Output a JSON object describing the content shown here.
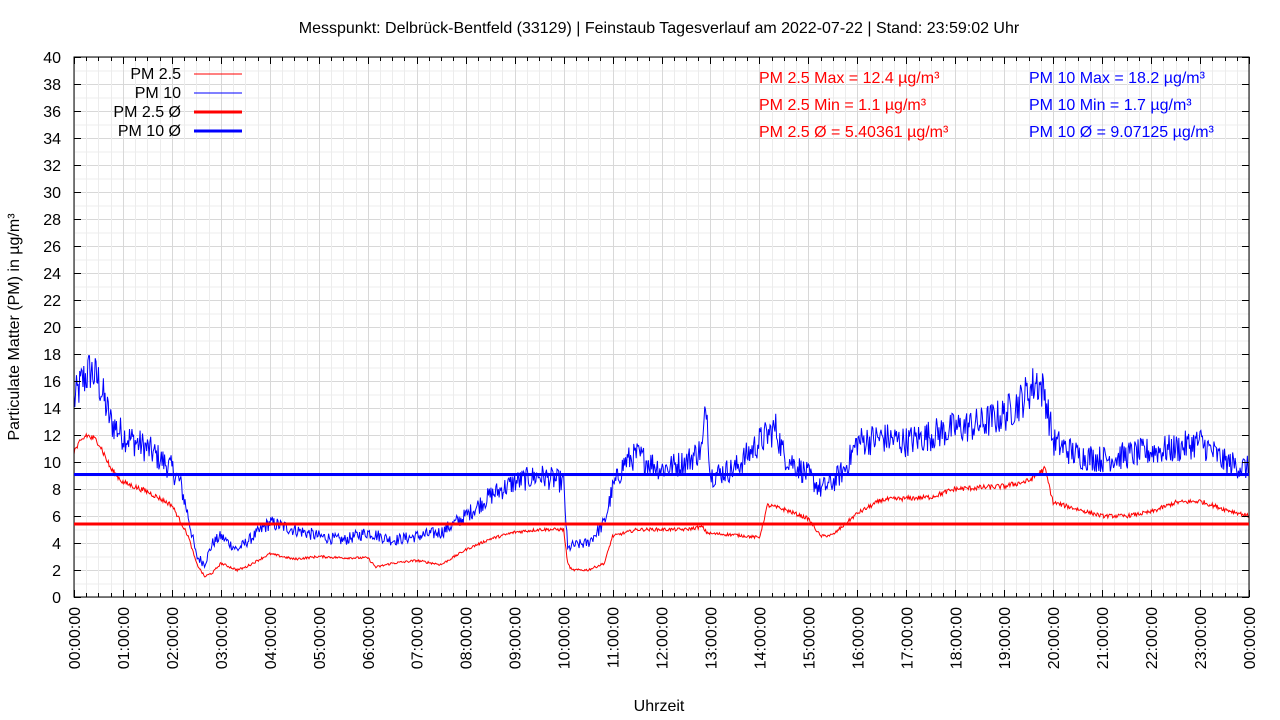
{
  "chart_data": {
    "type": "line",
    "title": "Messpunkt: Delbrück-Bentfeld (33129) | Feinstaub Tagesverlauf am 2022-07-22 | Stand: 23:59:02 Uhr",
    "xlabel": "Uhrzeit",
    "ylabel": "Particulate Matter (PM) in µg/m³",
    "ylim": [
      0,
      40
    ],
    "xlim_hours": [
      0,
      24
    ],
    "grid": true,
    "legend_position": "top-left",
    "y_ticks": [
      "0",
      "2",
      "4",
      "6",
      "8",
      "10",
      "12",
      "14",
      "16",
      "18",
      "20",
      "22",
      "24",
      "26",
      "28",
      "30",
      "32",
      "34",
      "36",
      "38",
      "40"
    ],
    "x_ticks": [
      "00:00:00",
      "01:00:00",
      "02:00:00",
      "03:00:00",
      "04:00:00",
      "05:00:00",
      "06:00:00",
      "07:00:00",
      "08:00:00",
      "09:00:00",
      "10:00:00",
      "11:00:00",
      "12:00:00",
      "13:00:00",
      "14:00:00",
      "15:00:00",
      "16:00:00",
      "17:00:00",
      "18:00:00",
      "19:00:00",
      "20:00:00",
      "21:00:00",
      "22:00:00",
      "23:00:00",
      "00:00:00"
    ],
    "legend": [
      {
        "label": "PM 2.5",
        "color": "#ff0000",
        "style": "thin"
      },
      {
        "label": "PM 10",
        "color": "#0000ff",
        "style": "thin"
      },
      {
        "label": "PM 2.5 Ø",
        "color": "#ff0000",
        "style": "thick"
      },
      {
        "label": "PM 10 Ø",
        "color": "#0000ff",
        "style": "thick"
      }
    ],
    "stats_pm25": [
      "PM 2.5 Max = 12.4 µg/m³",
      "PM 2.5 Min = 1.1 µg/m³",
      "PM 2.5 Ø = 5.40361 µg/m³"
    ],
    "stats_pm10": [
      "PM 10 Max = 18.2 µg/m³",
      "PM 10 Min = 1.7 µg/m³",
      "PM 10 Ø = 9.07125 µg/m³"
    ],
    "averages": {
      "pm25": 5.40361,
      "pm10": 9.07125
    },
    "colors": {
      "pm25": "#ff0000",
      "pm10": "#0000ff",
      "grid": "#e0e0e0"
    },
    "series": [
      {
        "name": "PM 2.5",
        "x": [
          "00:00",
          "00:15",
          "00:30",
          "00:45",
          "01:00",
          "01:30",
          "02:00",
          "02:20",
          "02:30",
          "02:40",
          "02:50",
          "03:00",
          "03:20",
          "03:30",
          "04:00",
          "04:30",
          "05:00",
          "05:30",
          "06:00",
          "06:10",
          "06:30",
          "07:00",
          "07:30",
          "08:00",
          "08:30",
          "09:00",
          "09:30",
          "10:00",
          "10:05",
          "10:10",
          "10:30",
          "10:50",
          "11:00",
          "11:30",
          "12:00",
          "12:30",
          "12:50",
          "12:55",
          "13:00",
          "13:30",
          "14:00",
          "14:10",
          "14:30",
          "15:00",
          "15:15",
          "15:30",
          "16:00",
          "16:30",
          "17:00",
          "17:30",
          "18:00",
          "18:30",
          "19:00",
          "19:30",
          "19:50",
          "20:00",
          "20:30",
          "21:00",
          "21:30",
          "22:00",
          "22:30",
          "23:00",
          "23:30",
          "24:00"
        ],
        "values": [
          10.8,
          12.0,
          11.5,
          9.5,
          8.5,
          7.8,
          6.8,
          4.5,
          2.5,
          1.5,
          1.8,
          2.5,
          2.0,
          2.2,
          3.2,
          2.8,
          3.0,
          2.9,
          2.9,
          2.2,
          2.5,
          2.7,
          2.4,
          3.5,
          4.3,
          4.8,
          5.0,
          5.0,
          2.5,
          2.0,
          2.0,
          2.5,
          4.5,
          5.0,
          5.0,
          5.0,
          5.2,
          4.8,
          4.7,
          4.6,
          4.4,
          6.8,
          6.5,
          5.8,
          4.5,
          4.6,
          6.2,
          7.2,
          7.3,
          7.4,
          8.0,
          8.1,
          8.2,
          8.6,
          9.5,
          7.0,
          6.5,
          6.0,
          6.0,
          6.3,
          7.0,
          7.1,
          6.5,
          6.0
        ]
      },
      {
        "name": "PM 10",
        "x": [
          "00:00",
          "00:10",
          "00:20",
          "00:30",
          "00:45",
          "01:00",
          "01:30",
          "02:00",
          "02:10",
          "02:20",
          "02:30",
          "02:40",
          "02:50",
          "03:00",
          "03:20",
          "03:30",
          "04:00",
          "04:30",
          "05:00",
          "05:30",
          "06:00",
          "06:30",
          "07:00",
          "07:30",
          "08:00",
          "08:30",
          "09:00",
          "09:30",
          "10:00",
          "10:05",
          "10:10",
          "10:30",
          "10:50",
          "11:00",
          "11:15",
          "11:30",
          "12:00",
          "12:30",
          "12:50",
          "12:55",
          "13:00",
          "13:30",
          "14:00",
          "14:20",
          "14:30",
          "15:00",
          "15:15",
          "15:30",
          "15:45",
          "16:00",
          "16:30",
          "17:00",
          "17:30",
          "18:00",
          "18:30",
          "19:00",
          "19:20",
          "19:40",
          "19:50",
          "20:00",
          "20:15",
          "20:30",
          "21:00",
          "21:30",
          "22:00",
          "22:30",
          "23:00",
          "23:30",
          "24:00"
        ],
        "values": [
          14.5,
          16.0,
          16.8,
          16.0,
          13.0,
          12.0,
          11.0,
          9.5,
          8.5,
          6.0,
          3.0,
          2.5,
          4.0,
          4.5,
          3.5,
          4.0,
          5.5,
          5.0,
          4.5,
          4.2,
          4.8,
          4.2,
          4.5,
          4.8,
          6.0,
          7.5,
          8.5,
          9.0,
          8.5,
          3.5,
          3.8,
          4.0,
          5.5,
          8.0,
          10.0,
          10.5,
          9.5,
          10.0,
          11.0,
          14.5,
          9.0,
          9.5,
          11.5,
          12.5,
          10.5,
          9.0,
          8.0,
          8.5,
          9.5,
          11.5,
          11.8,
          11.5,
          12.0,
          12.5,
          12.8,
          13.5,
          14.5,
          16.0,
          15.0,
          11.5,
          11.0,
          10.5,
          10.2,
          10.5,
          10.8,
          11.0,
          11.5,
          10.0,
          9.5
        ]
      }
    ]
  }
}
